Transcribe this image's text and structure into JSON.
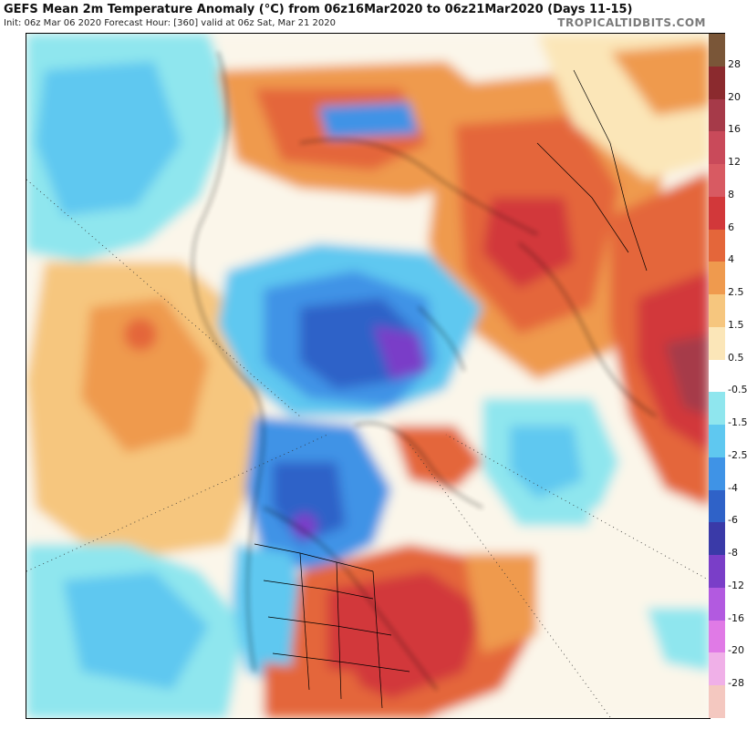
{
  "header": {
    "title": "GEFS Mean 2m Temperature Anomaly (°C) from 06z16Mar2020 to 06z21Mar2020 (Days 11-15)",
    "subtitle": "Init: 06z Mar 06 2020   Forecast Hour: [360]   valid at 06z Sat, Mar 21 2020",
    "brand": "TROPICALTIDBITS.COM"
  },
  "map": {
    "projection": "north-polar-stereographic",
    "variable": "2m temperature anomaly",
    "units": "°C"
  },
  "colorbar": {
    "levels": [
      {
        "label": "28",
        "color": "#7a5638"
      },
      {
        "label": "20",
        "color": "#8b2a2e"
      },
      {
        "label": "16",
        "color": "#a63a49"
      },
      {
        "label": "12",
        "color": "#c94a5a"
      },
      {
        "label": "8",
        "color": "#d85a62"
      },
      {
        "label": "6",
        "color": "#d2383a"
      },
      {
        "label": "4",
        "color": "#e4663a"
      },
      {
        "label": "2.5",
        "color": "#ef9a4e"
      },
      {
        "label": "1.5",
        "color": "#f6c67e"
      },
      {
        "label": "0.5",
        "color": "#fbe6b8"
      },
      {
        "label": "-0.5",
        "color": "#ffffff"
      },
      {
        "label": "-1.5",
        "color": "#8fe6ee"
      },
      {
        "label": "-2.5",
        "color": "#5fc8f0"
      },
      {
        "label": "-4",
        "color": "#3f93e6"
      },
      {
        "label": "-6",
        "color": "#2f62c8"
      },
      {
        "label": "-8",
        "color": "#3a3aa8"
      },
      {
        "label": "-12",
        "color": "#7a3ec8"
      },
      {
        "label": "-16",
        "color": "#b25ae0"
      },
      {
        "label": "-20",
        "color": "#e07ae6"
      },
      {
        "label": "-28",
        "color": "#f0b0e8"
      },
      {
        "label": "",
        "color": "#f4c8c0"
      }
    ]
  }
}
